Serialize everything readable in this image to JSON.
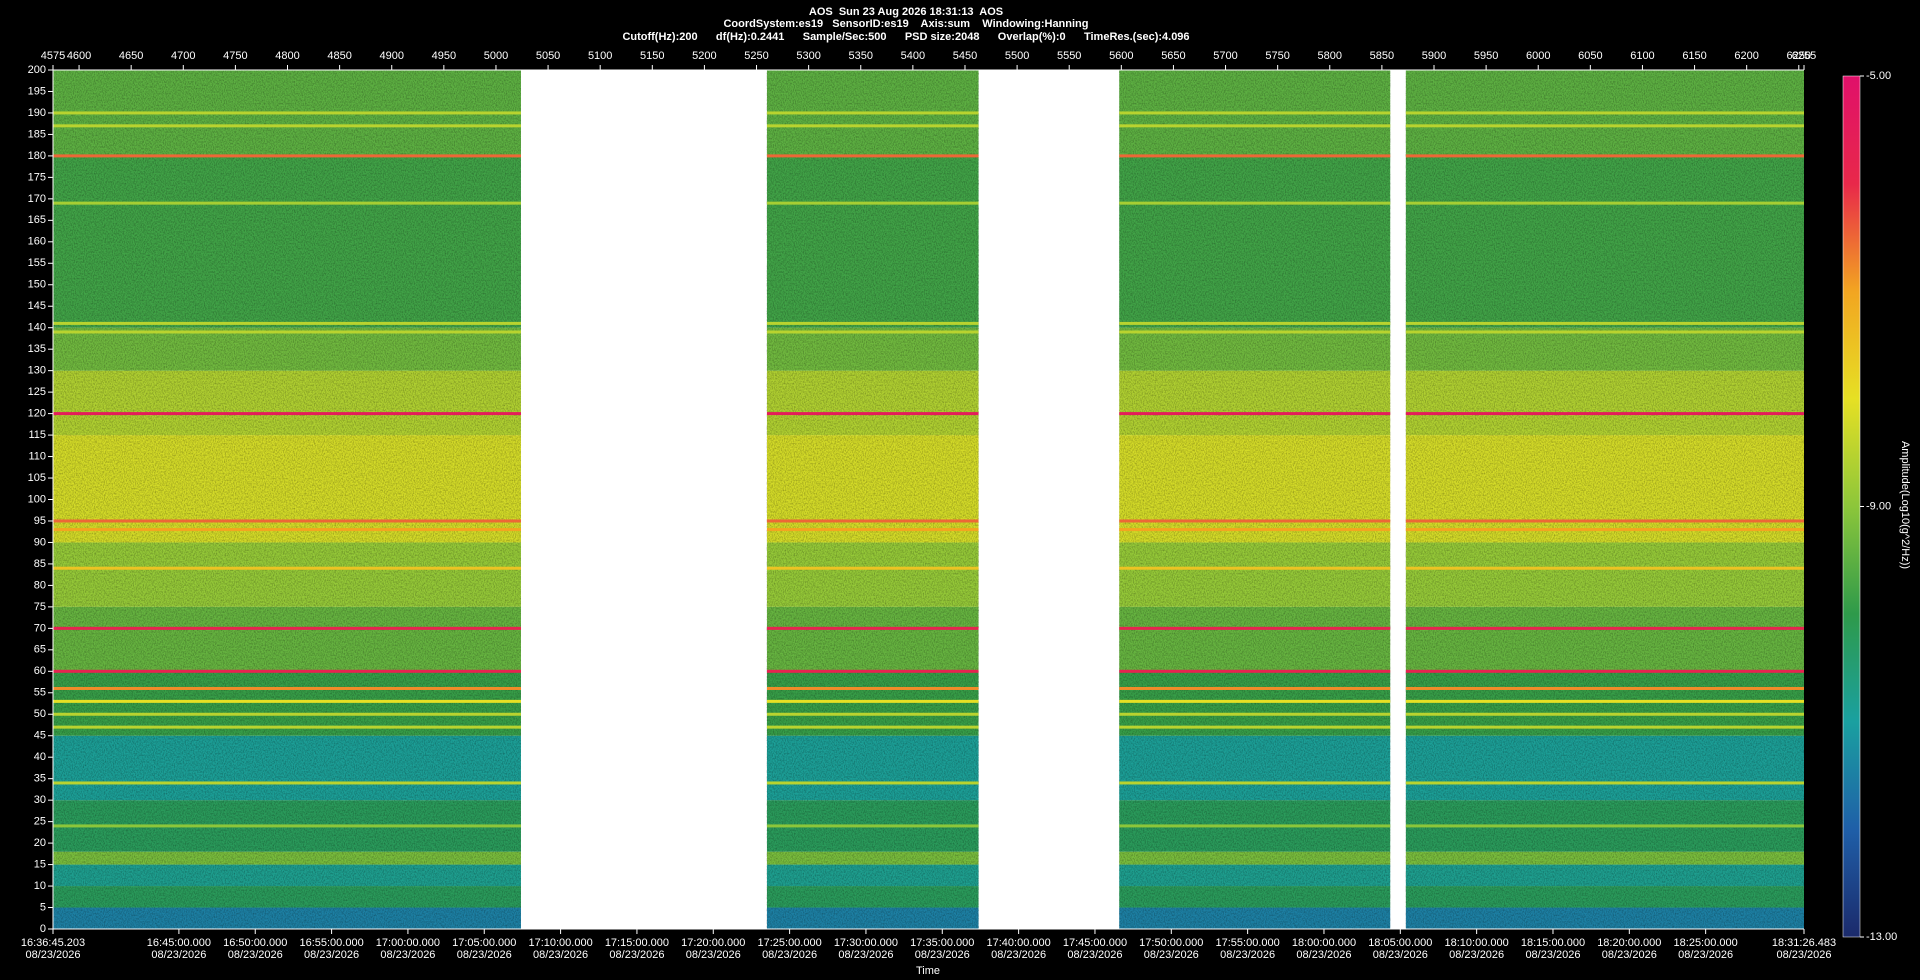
{
  "chart_data": {
    "type": "spectrogram",
    "title": "AOS  Sun 23 Aug 2026 18:31:13  AOS",
    "info": [
      "CoordSystem:es19   SensorID:es19    Axis:sum    Windowing:Hanning",
      "Cutoff(Hz):200      df(Hz):0.2441      Sample/Sec:500      PSD size:2048      Overlap(%):0      TimeRes.(sec):4.096"
    ],
    "xlabel": "Time",
    "colorbar_label": "Amplitude(Log10(g^2/Hz))",
    "ylim": [
      0,
      200
    ],
    "yticks": [
      0,
      5,
      10,
      15,
      20,
      25,
      30,
      35,
      40,
      45,
      50,
      55,
      60,
      65,
      70,
      75,
      80,
      85,
      90,
      95,
      100,
      105,
      110,
      115,
      120,
      125,
      130,
      135,
      140,
      145,
      150,
      155,
      160,
      165,
      170,
      175,
      180,
      185,
      190,
      195,
      200
    ],
    "x2lim": [
      4575,
      6255
    ],
    "x2ticks": [
      4575,
      4600,
      4650,
      4700,
      4750,
      4800,
      4850,
      4900,
      4950,
      5000,
      5050,
      5100,
      5150,
      5200,
      5250,
      5300,
      5350,
      5400,
      5450,
      5500,
      5550,
      5600,
      5650,
      5700,
      5750,
      5800,
      5850,
      5900,
      5950,
      6000,
      6050,
      6100,
      6150,
      6200,
      6250,
      6255
    ],
    "xticks": [
      {
        "value": 4575,
        "label": "16:36:45.203",
        "date": "08/23/2026"
      },
      {
        "value": 4695.8,
        "label": "16:45:00.000",
        "date": "08/23/2026"
      },
      {
        "value": 4769.04,
        "label": "16:50:00.000",
        "date": "08/23/2026"
      },
      {
        "value": 4842.29,
        "label": "16:55:00.000",
        "date": "08/23/2026"
      },
      {
        "value": 4915.53,
        "label": "17:00:00.000",
        "date": "08/23/2026"
      },
      {
        "value": 4988.77,
        "label": "17:05:00.000",
        "date": "08/23/2026"
      },
      {
        "value": 5062.01,
        "label": "17:10:00.000",
        "date": "08/23/2026"
      },
      {
        "value": 5135.26,
        "label": "17:15:00.000",
        "date": "08/23/2026"
      },
      {
        "value": 5208.5,
        "label": "17:20:00.000",
        "date": "08/23/2026"
      },
      {
        "value": 5281.74,
        "label": "17:25:00.000",
        "date": "08/23/2026"
      },
      {
        "value": 5354.98,
        "label": "17:30:00.000",
        "date": "08/23/2026"
      },
      {
        "value": 5428.22,
        "label": "17:35:00.000",
        "date": "08/23/2026"
      },
      {
        "value": 5501.47,
        "label": "17:40:00.000",
        "date": "08/23/2026"
      },
      {
        "value": 5574.71,
        "label": "17:45:00.000",
        "date": "08/23/2026"
      },
      {
        "value": 5647.95,
        "label": "17:50:00.000",
        "date": "08/23/2026"
      },
      {
        "value": 5721.19,
        "label": "17:55:00.000",
        "date": "08/23/2026"
      },
      {
        "value": 5794.43,
        "label": "18:00:00.000",
        "date": "08/23/2026"
      },
      {
        "value": 5867.68,
        "label": "18:05:00.000",
        "date": "08/23/2026"
      },
      {
        "value": 5940.92,
        "label": "18:10:00.000",
        "date": "08/23/2026"
      },
      {
        "value": 6014.16,
        "label": "18:15:00.000",
        "date": "08/23/2026"
      },
      {
        "value": 6087.4,
        "label": "18:20:00.000",
        "date": "08/23/2026"
      },
      {
        "value": 6160.64,
        "label": "18:25:00.000",
        "date": "08/23/2026"
      },
      {
        "value": 6255,
        "label": "18:31:26.483",
        "date": "08/23/2026"
      }
    ],
    "segments": [
      [
        4575,
        5024
      ],
      [
        5260,
        5463
      ],
      [
        5598,
        5858
      ],
      [
        5873,
        6255
      ]
    ],
    "profile": {
      "bins": [
        0,
        5,
        10,
        15,
        18,
        30,
        45,
        60,
        75,
        90,
        115,
        130,
        140,
        180,
        200
      ],
      "values": [
        -11.5,
        -10.2,
        -10.8,
        -9.2,
        -10.2,
        -10.9,
        -9.9,
        -9.4,
        -8.9,
        -8.2,
        -8.6,
        -9.3,
        -9.8,
        -9.5
      ]
    },
    "tones": {
      "frequencies": [
        24,
        34,
        47,
        50,
        53,
        56,
        60,
        70,
        84,
        93,
        95,
        120,
        139,
        141,
        169,
        180,
        187,
        190
      ],
      "values": [
        -9,
        -8.5,
        -8.5,
        -8.5,
        -8,
        -6.8,
        -5.8,
        -5.8,
        -7.5,
        -7,
        -6.5,
        -5.5,
        -8.5,
        -8.5,
        -8.7,
        -6.5,
        -8.5,
        -8.5
      ]
    },
    "clim": [
      -13,
      -5
    ],
    "cticks": [
      {
        "value": -5,
        "label": "-5.00"
      },
      {
        "value": -9,
        "label": "-9.00"
      },
      {
        "value": -13,
        "label": "-13.00"
      }
    ],
    "colormap": [
      "#1b2a6b",
      "#1f5fa8",
      "#1aa0a0",
      "#2e9a4a",
      "#8cc63a",
      "#e6e024",
      "#f2a521",
      "#e8284a",
      "#e0106a"
    ]
  }
}
